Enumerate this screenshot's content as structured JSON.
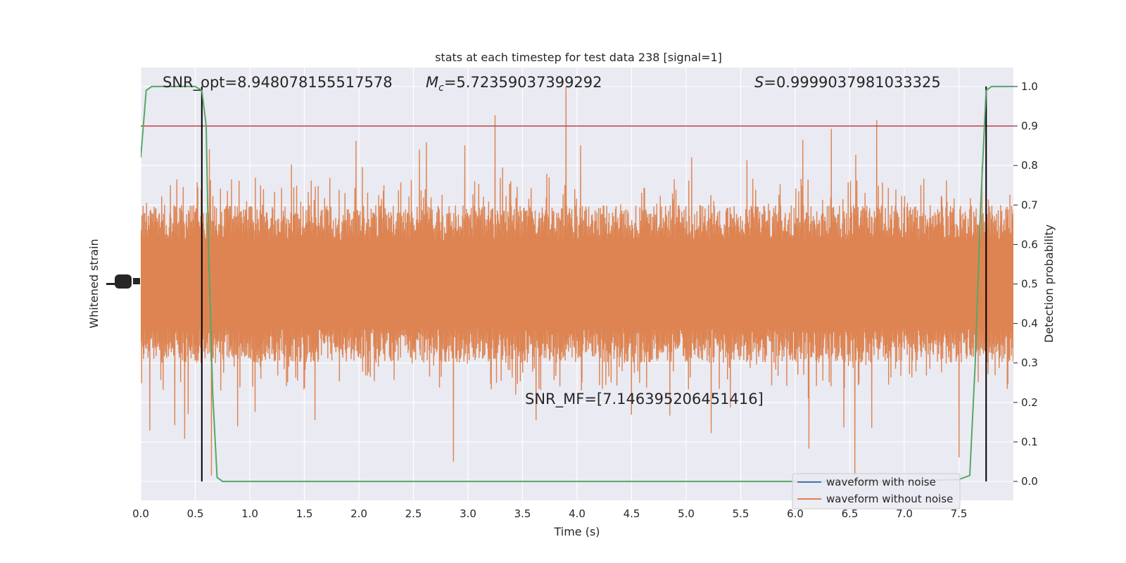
{
  "colors": {
    "background": "#eaeaf2",
    "grid": "#ffffff",
    "noisy": "#4c72b0",
    "clean": "#dd8452",
    "probability": "#55a868",
    "threshold": "#c44e52",
    "marker": "#000000"
  },
  "chart_data": {
    "type": "line",
    "title": "stats at each timestep for test data 238 [signal=1]",
    "xlabel": "Time (s)",
    "ylabel_left": "Whitened strain",
    "ylabel_right": "Detection probability",
    "xlim": [
      0,
      8
    ],
    "ylim_right": [
      -0.048,
      1.048
    ],
    "x_ticks": [
      "0.0",
      "0.5",
      "1.0",
      "1.5",
      "2.0",
      "2.5",
      "3.0",
      "3.5",
      "4.0",
      "4.5",
      "5.0",
      "5.5",
      "6.0",
      "6.5",
      "7.0",
      "7.5"
    ],
    "y_right_ticks": [
      "0.0",
      "0.1",
      "0.2",
      "0.3",
      "0.4",
      "0.5",
      "0.6",
      "0.7",
      "0.8",
      "0.9",
      "1.0"
    ],
    "grid": true,
    "legend_position": "lower-right",
    "annotations": {
      "snr_opt": "SNR_opt=8.948078155517578",
      "mc_symbol": "M",
      "mc_subscript": "c",
      "mc_value": "=5.72359037399292",
      "s_symbol": "S",
      "s_value": "=0.9999037981033325",
      "snr_mf": "SNR_MF=[7.146395206451416]"
    },
    "threshold": 0.9,
    "detection_markers_x": [
      0.56,
      7.75
    ],
    "series": [
      {
        "name": "waveform with noise",
        "role": "strain",
        "values_note_free": true
      },
      {
        "name": "waveform without noise",
        "role": "strain",
        "envelope_typical_probability_range": [
          0.3,
          0.7
        ],
        "envelope_extreme_probability_range": [
          0.0,
          1.0
        ]
      },
      {
        "role": "probability",
        "x": [
          0.0,
          0.05,
          0.1,
          0.2,
          0.3,
          0.4,
          0.5,
          0.56,
          0.6,
          0.62,
          0.66,
          0.7,
          0.75,
          0.82,
          1.0,
          2.0,
          3.0,
          4.0,
          5.0,
          6.0,
          7.0,
          7.5,
          7.6,
          7.65,
          7.7,
          7.75,
          7.8,
          7.85,
          7.9,
          8.0
        ],
        "values": [
          0.82,
          0.99,
          1.0,
          1.0,
          1.0,
          1.0,
          1.0,
          0.99,
          0.9,
          0.6,
          0.22,
          0.01,
          0.0,
          0.0,
          0.0,
          0.0,
          0.0,
          0.0,
          0.0,
          0.0,
          0.0,
          0.005,
          0.015,
          0.3,
          0.7,
          0.99,
          1.0,
          1.0,
          1.0,
          1.0
        ]
      }
    ]
  }
}
